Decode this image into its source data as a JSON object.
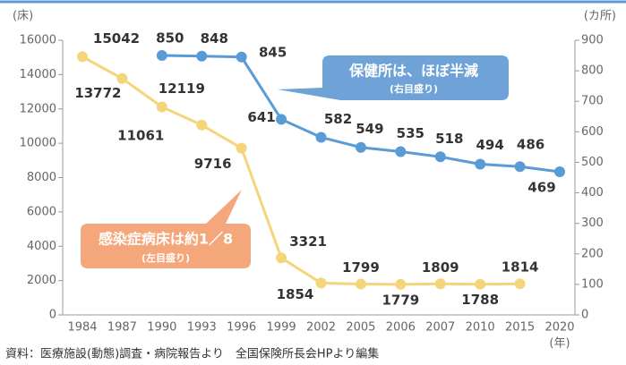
{
  "chart_data": {
    "type": "line",
    "y_label": "(床)",
    "y2_label": "(カ所)",
    "x_label": "(年)",
    "categories": [
      "1984",
      "1987",
      "1990",
      "1993",
      "1996",
      "1999",
      "2002",
      "2005",
      "2006",
      "2007",
      "2010",
      "2015",
      "2020"
    ],
    "series": [
      {
        "name": "感染症病床",
        "color": "#f5d57a",
        "values": [
          15042,
          13772,
          12119,
          11061,
          9716,
          3321,
          1854,
          1799,
          1779,
          1809,
          1788,
          1814,
          null
        ]
      },
      {
        "name": "保健所",
        "color": "#5b9bd5",
        "axis": "y2",
        "values": [
          null,
          null,
          850,
          848,
          845,
          641,
          582,
          549,
          535,
          518,
          494,
          486,
          469
        ]
      }
    ],
    "ylim": [
      0,
      16000
    ],
    "yticks": [
      0,
      2000,
      4000,
      6000,
      8000,
      10000,
      12000,
      14000,
      16000
    ],
    "y2lim": [
      0,
      900
    ],
    "y2ticks": [
      0,
      100,
      200,
      300,
      400,
      500,
      600,
      700,
      800,
      900
    ],
    "annotations": [
      {
        "text": "保健所は、ほぼ半減",
        "note": "(右目盛り)"
      },
      {
        "text": "感染症病床は約1／8",
        "note": "(左目盛り)"
      }
    ],
    "source": "資料：医療施設(動態)調査・病院報告より　全国保険所長会HPより編集"
  }
}
